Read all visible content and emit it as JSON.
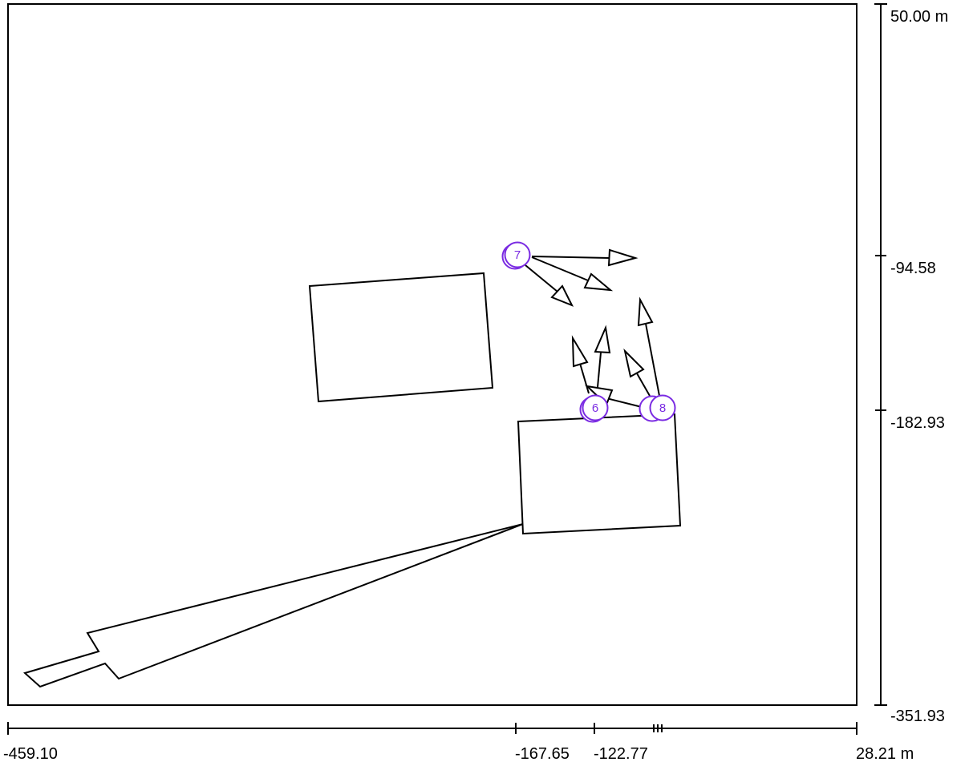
{
  "axes": {
    "x": {
      "min_label": "-459.10",
      "max_label": "28.21 m",
      "tick_labels": [
        "-167.65",
        "-122.77"
      ]
    },
    "y": {
      "top_label": "50.00 m",
      "bottom_label": "-351.93",
      "tick_labels": [
        "-94.58",
        "-182.93"
      ]
    }
  },
  "markers": [
    {
      "id": "marker-7",
      "label": "7"
    },
    {
      "id": "marker-6",
      "label": "6"
    },
    {
      "id": "marker-8",
      "label": "8"
    }
  ],
  "colors": {
    "marker": "#7a2be2",
    "lines": "#000000",
    "background": "#ffffff"
  }
}
